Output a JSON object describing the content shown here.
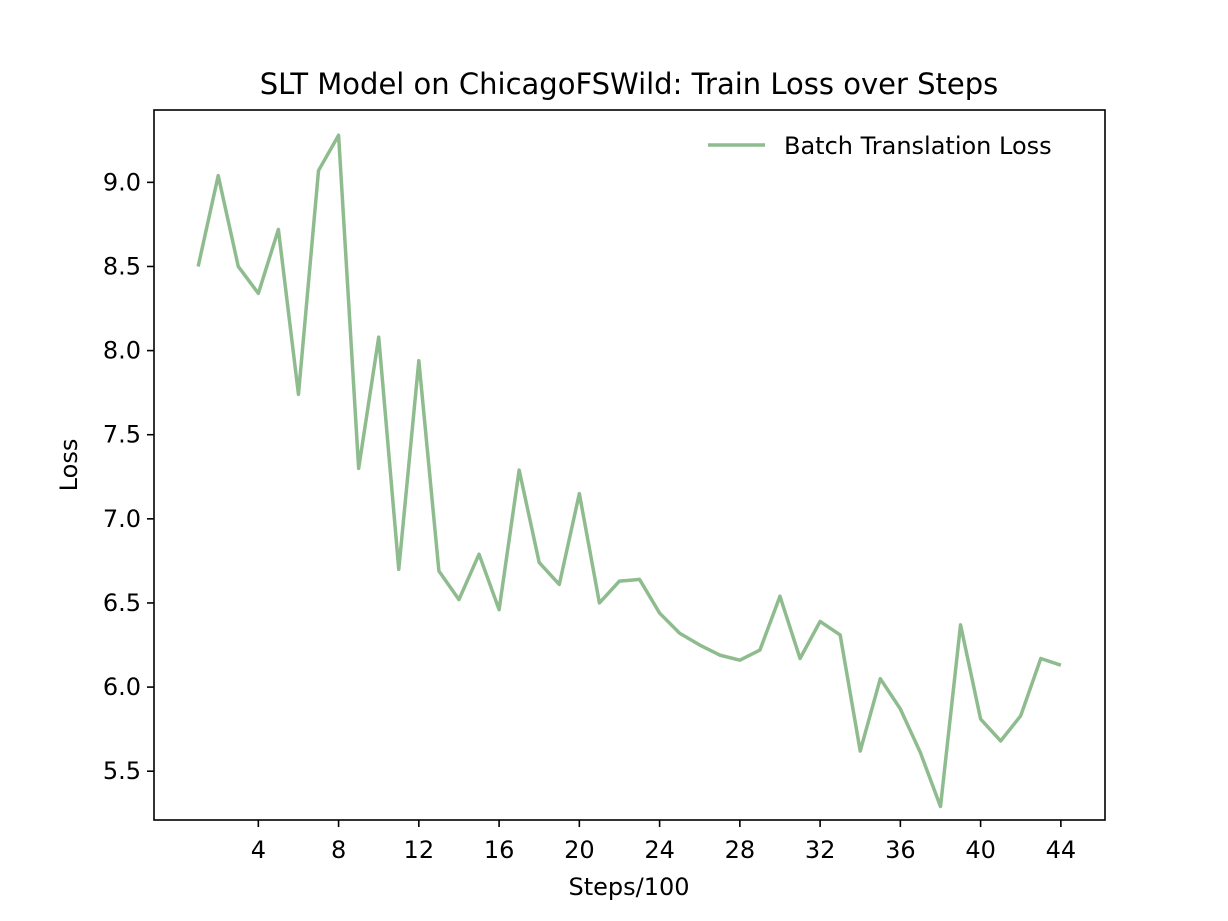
{
  "chart_data": {
    "type": "line",
    "title": "SLT Model on ChicagoFSWild: Train Loss over Steps",
    "xlabel": "Steps/100",
    "ylabel": "Loss",
    "xlim": [
      -1.2,
      46.2
    ],
    "ylim": [
      5.21,
      9.43
    ],
    "x_ticks": [
      4,
      8,
      12,
      16,
      20,
      24,
      28,
      32,
      36,
      40,
      44
    ],
    "y_ticks": [
      5.5,
      6.0,
      6.5,
      7.0,
      7.5,
      8.0,
      8.5,
      9.0
    ],
    "y_tick_labels": [
      "5.5",
      "6.0",
      "6.5",
      "7.0",
      "7.5",
      "8.0",
      "8.5",
      "9.0"
    ],
    "grid": false,
    "legend_position": "top-right",
    "series": [
      {
        "name": "Batch Translation Loss",
        "color": "#8fbc8f",
        "x": [
          1,
          2,
          3,
          4,
          5,
          6,
          7,
          8,
          9,
          10,
          11,
          12,
          13,
          14,
          15,
          16,
          17,
          18,
          19,
          20,
          21,
          22,
          23,
          24,
          25,
          26,
          27,
          28,
          29,
          30,
          31,
          32,
          33,
          34,
          35,
          36,
          37,
          38,
          39,
          40,
          41,
          42,
          43,
          44
        ],
        "y": [
          8.5,
          9.04,
          8.5,
          8.34,
          8.72,
          7.74,
          9.07,
          9.28,
          7.3,
          8.08,
          6.7,
          7.94,
          6.69,
          6.52,
          6.79,
          6.46,
          7.29,
          6.74,
          6.61,
          7.15,
          6.5,
          6.63,
          6.64,
          6.44,
          6.32,
          6.25,
          6.19,
          6.16,
          6.22,
          6.54,
          6.17,
          6.39,
          6.31,
          5.62,
          6.05,
          5.87,
          5.61,
          5.29,
          6.37,
          5.81,
          5.68,
          5.83,
          6.17,
          6.13
        ]
      }
    ]
  }
}
